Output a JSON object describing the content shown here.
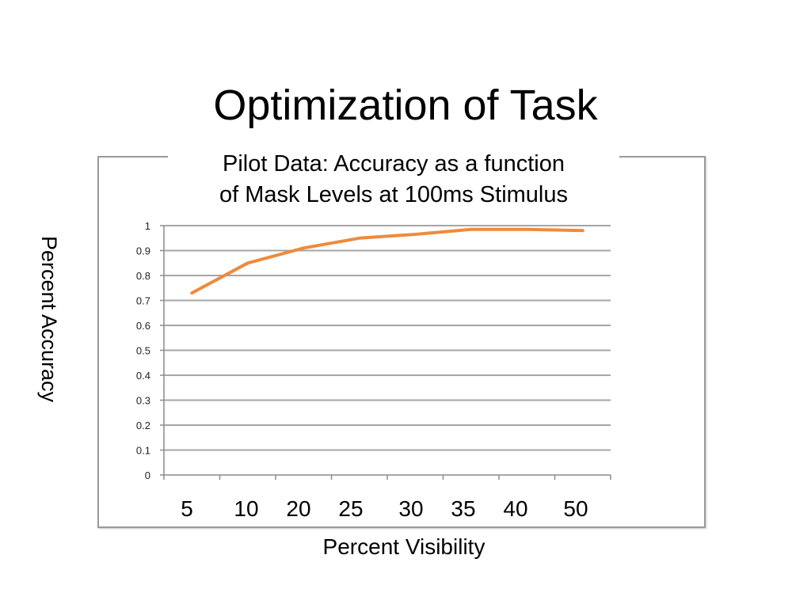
{
  "slide": {
    "title": "Optimization of Task"
  },
  "chart_data": {
    "type": "line",
    "title": "Pilot Data: Accuracy as a function of Mask Levels at 100ms Stimulus",
    "title_lines": [
      "Pilot Data: Accuracy as a function",
      "of Mask Levels at 100ms Stimulus"
    ],
    "xlabel": "Percent Visibility",
    "ylabel": "Percent Accuracy",
    "categories": [
      "5",
      "10",
      "20",
      "25",
      "30",
      "35",
      "40",
      "50"
    ],
    "y_ticks": [
      "0",
      "0.1",
      "0.2",
      "0.3",
      "0.4",
      "0.5",
      "0.6",
      "0.7",
      "0.8",
      "0.9",
      "1"
    ],
    "ylim": [
      0,
      1
    ],
    "grid": true,
    "series": [
      {
        "values": [
          0.73,
          0.85,
          0.91,
          0.95,
          0.965,
          0.985,
          0.985,
          0.98
        ],
        "color": "#f08a3c"
      }
    ]
  }
}
